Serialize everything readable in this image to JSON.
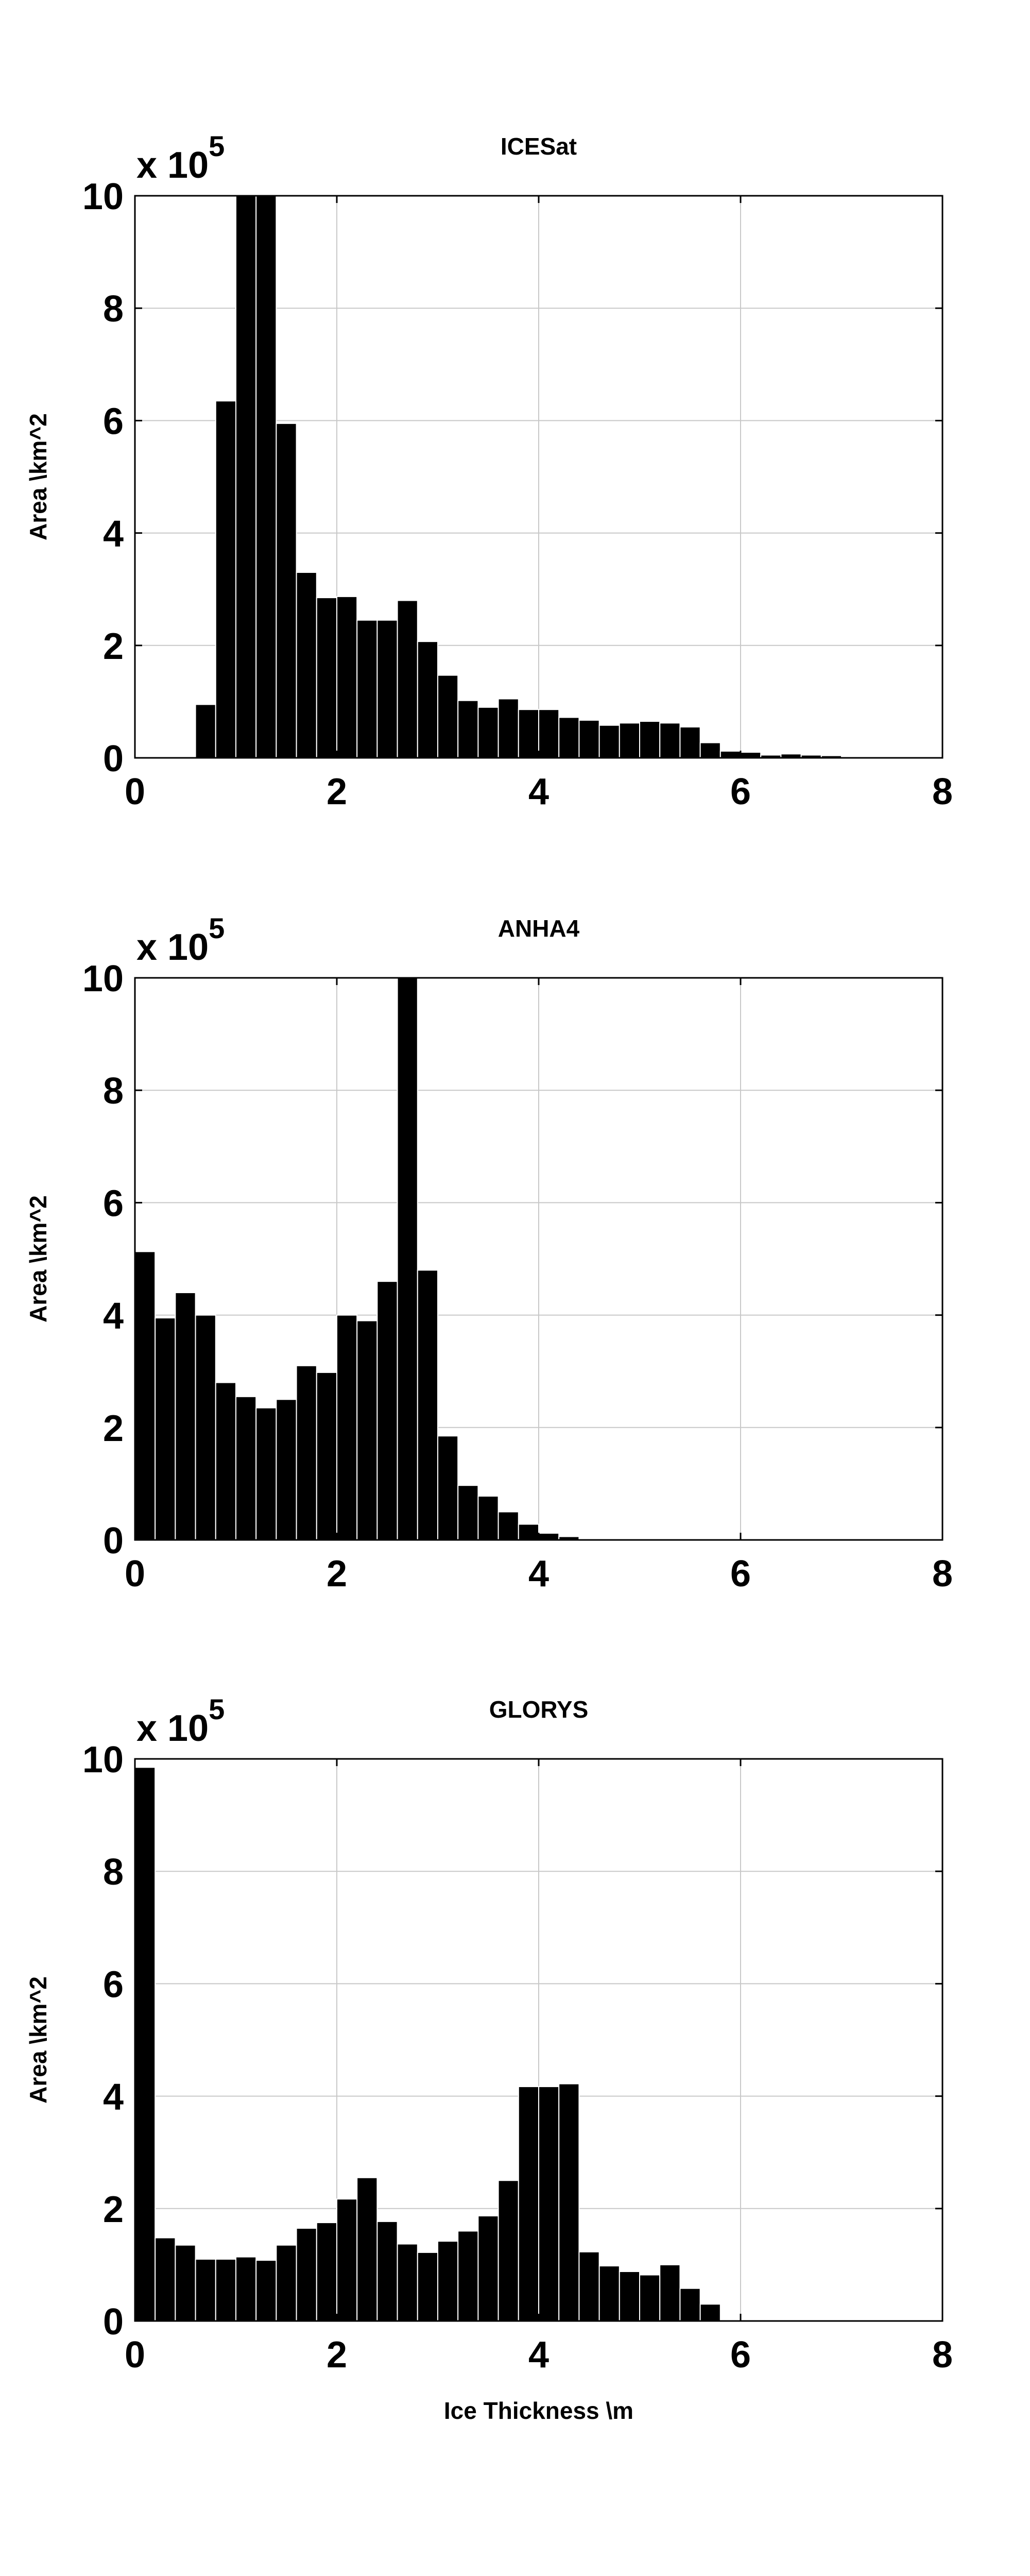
{
  "colors": {
    "bar": "#000000",
    "grid": "#c8c8c8",
    "axis": "#000000",
    "background": "#ffffff"
  },
  "chart_data": [
    {
      "type": "bar",
      "title": "ICESat",
      "ylabel": "Area \\km^2",
      "xlabel": "",
      "multiplier": {
        "base": "x 10",
        "exponent": "5"
      },
      "xlim": [
        0,
        8
      ],
      "ylim": [
        0,
        10
      ],
      "xticks": [
        "0",
        "2",
        "4",
        "6",
        "8"
      ],
      "yticks": [
        "0",
        "2",
        "4",
        "6",
        "8",
        "10"
      ],
      "grid": true,
      "bin_width": 0.2,
      "bin_starts": [
        0,
        0.2,
        0.4,
        0.6,
        0.8,
        1.0,
        1.2,
        1.4,
        1.6,
        1.8,
        2.0,
        2.2,
        2.4,
        2.6,
        2.8,
        3.0,
        3.2,
        3.4,
        3.6,
        3.8,
        4.0,
        4.2,
        4.4,
        4.6,
        4.8,
        5.0,
        5.2,
        5.4,
        5.6,
        5.8,
        6.0,
        6.2,
        6.4,
        6.6,
        6.8,
        7.0,
        7.2,
        7.4,
        7.6,
        7.8
      ],
      "values": [
        0,
        0,
        0,
        0.95,
        6.35,
        10.0,
        10.0,
        5.95,
        3.3,
        2.85,
        2.87,
        2.45,
        2.45,
        2.8,
        2.07,
        1.47,
        1.02,
        0.9,
        1.05,
        0.86,
        0.86,
        0.72,
        0.67,
        0.58,
        0.62,
        0.65,
        0.62,
        0.55,
        0.27,
        0.12,
        0.1,
        0.05,
        0.07,
        0.05,
        0.04,
        0,
        0,
        0,
        0,
        0
      ]
    },
    {
      "type": "bar",
      "title": "ANHA4",
      "ylabel": "Area \\km^2",
      "xlabel": "",
      "multiplier": {
        "base": "x 10",
        "exponent": "5"
      },
      "xlim": [
        0,
        8
      ],
      "ylim": [
        0,
        10
      ],
      "xticks": [
        "0",
        "2",
        "4",
        "6",
        "8"
      ],
      "yticks": [
        "0",
        "2",
        "4",
        "6",
        "8",
        "10"
      ],
      "grid": true,
      "bin_width": 0.2,
      "bin_starts": [
        0,
        0.2,
        0.4,
        0.6,
        0.8,
        1.0,
        1.2,
        1.4,
        1.6,
        1.8,
        2.0,
        2.2,
        2.4,
        2.6,
        2.8,
        3.0,
        3.2,
        3.4,
        3.6,
        3.8,
        4.0,
        4.2,
        4.4,
        4.6,
        4.8,
        5.0,
        5.2,
        5.4,
        5.6,
        5.8,
        6.0,
        6.2,
        6.4,
        6.6,
        6.8,
        7.0,
        7.2,
        7.4,
        7.6,
        7.8
      ],
      "values": [
        5.13,
        3.95,
        4.4,
        4.0,
        2.8,
        2.55,
        2.35,
        2.5,
        3.1,
        2.98,
        4.0,
        3.9,
        4.6,
        10.0,
        4.8,
        1.85,
        0.97,
        0.78,
        0.5,
        0.28,
        0.12,
        0.06,
        0.02,
        0.01,
        0,
        0,
        0,
        0,
        0,
        0,
        0,
        0,
        0,
        0,
        0,
        0,
        0,
        0,
        0,
        0
      ]
    },
    {
      "type": "bar",
      "title": "GLORYS",
      "ylabel": "Area \\km^2",
      "xlabel": "Ice Thickness \\m",
      "multiplier": {
        "base": "x 10",
        "exponent": "5"
      },
      "xlim": [
        0,
        8
      ],
      "ylim": [
        0,
        10
      ],
      "xticks": [
        "0",
        "2",
        "4",
        "6",
        "8"
      ],
      "yticks": [
        "0",
        "2",
        "4",
        "6",
        "8",
        "10"
      ],
      "grid": true,
      "bin_width": 0.2,
      "bin_starts": [
        0,
        0.2,
        0.4,
        0.6,
        0.8,
        1.0,
        1.2,
        1.4,
        1.6,
        1.8,
        2.0,
        2.2,
        2.4,
        2.6,
        2.8,
        3.0,
        3.2,
        3.4,
        3.6,
        3.8,
        4.0,
        4.2,
        4.4,
        4.6,
        4.8,
        5.0,
        5.2,
        5.4,
        5.6,
        5.8,
        6.0,
        6.2,
        6.4,
        6.6,
        6.8,
        7.0,
        7.2,
        7.4,
        7.6,
        7.8
      ],
      "values": [
        9.85,
        1.48,
        1.35,
        1.1,
        1.1,
        1.14,
        1.08,
        1.35,
        1.65,
        1.75,
        2.17,
        2.55,
        1.77,
        1.37,
        1.22,
        1.42,
        1.6,
        1.87,
        2.5,
        4.17,
        4.17,
        4.22,
        1.23,
        0.98,
        0.88,
        0.82,
        1.0,
        0.58,
        0.3,
        0,
        0,
        0,
        0,
        0,
        0,
        0,
        0,
        0,
        0,
        0
      ]
    }
  ]
}
